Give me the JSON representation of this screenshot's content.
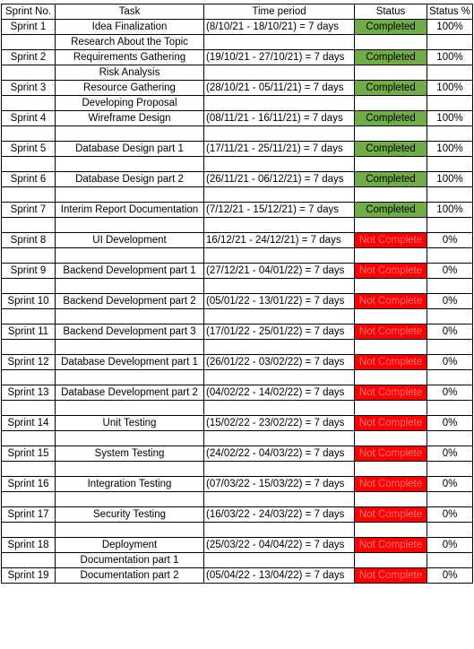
{
  "headers": [
    "Sprint No.",
    "Task",
    "Time period",
    "Status",
    "Status %"
  ],
  "colors": {
    "completed": "#70ad47",
    "not_complete": "#ff0000"
  },
  "rows": [
    {
      "sprint": "Sprint 1",
      "task": "Idea Finalization",
      "time": "(8/10/21 - 18/10/21) = 7 days",
      "status": "Completed",
      "pct": "100%",
      "extra": "Research About the Topic"
    },
    {
      "sprint": "",
      "task": "",
      "time": "",
      "status": "",
      "pct": "",
      "extra": ""
    },
    {
      "sprint": "Sprint 2",
      "task": "Requirements Gathering",
      "time": "(19/10/21 - 27/10/21) = 7 days",
      "status": "Completed",
      "pct": "100%",
      "extra": "Risk Analysis"
    },
    {
      "sprint": "",
      "task": "",
      "time": "",
      "status": "",
      "pct": "",
      "extra": ""
    },
    {
      "sprint": "Sprint 3",
      "task": "Resource Gathering",
      "time": "(28/10/21 - 05/11/21) = 7 days",
      "status": "Completed",
      "pct": "100%",
      "extra": "Developing Proposal"
    },
    {
      "sprint": "",
      "task": "",
      "time": "",
      "status": "",
      "pct": "",
      "extra": ""
    },
    {
      "sprint": "Sprint 4",
      "task": "Wireframe Design",
      "time": "(08/11/21 - 16/11/21) = 7 days",
      "status": "Completed",
      "pct": "100%"
    },
    {
      "sprint": "",
      "task": "",
      "time": "",
      "status": "",
      "pct": ""
    },
    {
      "sprint": "Sprint 5",
      "task": "Database Design part 1",
      "time": "(17/11/21 - 25/11/21) = 7 days",
      "status": "Completed",
      "pct": "100%"
    },
    {
      "sprint": "",
      "task": "",
      "time": "",
      "status": "",
      "pct": ""
    },
    {
      "sprint": "Sprint 6",
      "task": "Database Design part 2",
      "time": "(26/11/21 - 06/12/21) = 7 days",
      "status": "Completed",
      "pct": "100%"
    },
    {
      "sprint": "",
      "task": "",
      "time": "",
      "status": "",
      "pct": ""
    },
    {
      "sprint": "Sprint 7",
      "task": "Interim Report Documentation",
      "time": "(7/12/21 - 15/12/21) = 7 days",
      "status": "Completed",
      "pct": "100%"
    },
    {
      "sprint": "",
      "task": "",
      "time": "",
      "status": "",
      "pct": ""
    },
    {
      "sprint": "Sprint 8",
      "task": "UI Development",
      "time": "16/12/21 - 24/12/21) = 7 days",
      "status": "Not Complete",
      "pct": "0%"
    },
    {
      "sprint": "",
      "task": "",
      "time": "",
      "status": "",
      "pct": ""
    },
    {
      "sprint": "Sprint 9",
      "task": "Backend Development part 1",
      "time": "(27/12/21 - 04/01/22) = 7 days",
      "status": "Not Complete",
      "pct": "0%"
    },
    {
      "sprint": "",
      "task": "",
      "time": "",
      "status": "",
      "pct": ""
    },
    {
      "sprint": "Sprint 10",
      "task": "Backend Development part 2",
      "time": "(05/01/22 - 13/01/22) = 7 days",
      "status": "Not Complete",
      "pct": "0%"
    },
    {
      "sprint": "",
      "task": "",
      "time": "",
      "status": "",
      "pct": ""
    },
    {
      "sprint": "Sprint 11",
      "task": "Backend Development part 3",
      "time": "(17/01/22 - 25/01/22) = 7 days",
      "status": "Not Complete",
      "pct": "0%"
    },
    {
      "sprint": "",
      "task": "",
      "time": "",
      "status": "",
      "pct": ""
    },
    {
      "sprint": "Sprint 12",
      "task": "Database Development part 1",
      "time": "(26/01/22 - 03/02/22) = 7 days",
      "status": "Not Complete",
      "pct": "0%"
    },
    {
      "sprint": "",
      "task": "",
      "time": "",
      "status": "",
      "pct": ""
    },
    {
      "sprint": "Sprint 13",
      "task": "Database Development part 2",
      "time": "(04/02/22 - 14/02/22) = 7 days",
      "status": "Not Complete",
      "pct": "0%"
    },
    {
      "sprint": "",
      "task": "",
      "time": "",
      "status": "",
      "pct": ""
    },
    {
      "sprint": "Sprint 14",
      "task": "Unit Testing",
      "time": "(15/02/22 - 23/02/22) = 7 days",
      "status": "Not Complete",
      "pct": "0%"
    },
    {
      "sprint": "",
      "task": "",
      "time": "",
      "status": "",
      "pct": ""
    },
    {
      "sprint": "Sprint 15",
      "task": "System Testing",
      "time": "(24/02/22 - 04/03/22) = 7 days",
      "status": "Not Complete",
      "pct": "0%"
    },
    {
      "sprint": "",
      "task": "",
      "time": "",
      "status": "",
      "pct": ""
    },
    {
      "sprint": "Sprint 16",
      "task": "Integration Testing",
      "time": "(07/03/22 - 15/03/22) = 7 days",
      "status": "Not Complete",
      "pct": "0%"
    },
    {
      "sprint": "",
      "task": "",
      "time": "",
      "status": "",
      "pct": ""
    },
    {
      "sprint": "Sprint 17",
      "task": "Security Testing",
      "time": "(16/03/22 - 24/03/22) = 7 days",
      "status": "Not Complete",
      "pct": "0%"
    },
    {
      "sprint": "",
      "task": "",
      "time": "",
      "status": "",
      "pct": ""
    },
    {
      "sprint": "Sprint 18",
      "task": "Deployment",
      "time": "(25/03/22 - 04/04/22) = 7 days",
      "status": "Not Complete",
      "pct": "0%",
      "extra": "Documentation part 1"
    },
    {
      "sprint": "",
      "task": "",
      "time": "",
      "status": "",
      "pct": "",
      "extra": ""
    },
    {
      "sprint": "Sprint 19",
      "task": "Documentation part 2",
      "time": "(05/04/22 - 13/04/22) = 7 days",
      "status": "Not Complete",
      "pct": "0%"
    }
  ]
}
